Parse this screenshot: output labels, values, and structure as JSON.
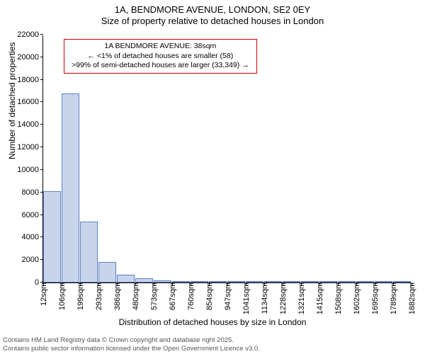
{
  "title": {
    "line1": "1A, BENDMORE AVENUE, LONDON, SE2 0EY",
    "line2": "Size of property relative to detached houses in London"
  },
  "ylabel": "Number of detached properties",
  "xlabel": "Distribution of detached houses by size in London",
  "chart": {
    "type": "histogram",
    "background_color": "#ffffff",
    "bar_fill": "#c8d4ec",
    "bar_border": "#6080c0",
    "ylim": [
      0,
      22000
    ],
    "ytick_step": 2000,
    "yticks": [
      0,
      2000,
      4000,
      6000,
      8000,
      10000,
      12000,
      14000,
      16000,
      18000,
      20000,
      22000
    ],
    "xticks": [
      "12sqm",
      "106sqm",
      "199sqm",
      "293sqm",
      "386sqm",
      "480sqm",
      "573sqm",
      "667sqm",
      "760sqm",
      "854sqm",
      "947sqm",
      "1041sqm",
      "1134sqm",
      "1228sqm",
      "1321sqm",
      "1415sqm",
      "1508sqm",
      "1602sqm",
      "1695sqm",
      "1789sqm",
      "1882sqm"
    ],
    "bars": [
      8100,
      16800,
      5400,
      1800,
      700,
      350,
      200,
      150,
      120,
      100,
      80,
      60,
      50,
      40,
      30,
      25,
      20,
      15,
      12,
      10
    ]
  },
  "annotation": {
    "line1": "1A BENDMORE AVENUE: 38sqm",
    "line2": "← <1% of detached houses are smaller (58)",
    "line3": ">99% of semi-detached houses are larger (33,349) →",
    "border_color": "#cc0000"
  },
  "footer": {
    "line1": "Contains HM Land Registry data © Crown copyright and database right 2025.",
    "line2": "Contains public sector information licensed under the Open Government Licence v3.0."
  }
}
